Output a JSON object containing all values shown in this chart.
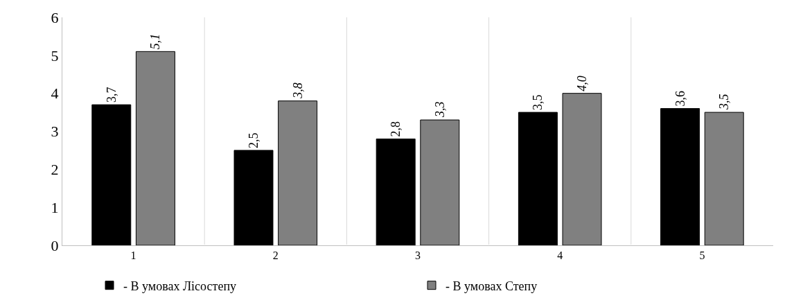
{
  "chart_data": {
    "type": "bar",
    "categories": [
      "1",
      "2",
      "3",
      "4",
      "5"
    ],
    "series": [
      {
        "name": "- В умовах Лісостепу",
        "color": "#000000",
        "values": [
          3.7,
          2.5,
          2.8,
          3.5,
          3.6
        ],
        "value_labels": [
          "3,7",
          "2,5",
          "2,8",
          "3,5",
          "3,6"
        ]
      },
      {
        "name": "- В умовах Степу",
        "color": "#808080",
        "values": [
          5.1,
          3.8,
          3.3,
          4.0,
          3.5
        ],
        "value_labels": [
          "5,1",
          "3,8",
          "3,3",
          "4,0",
          "3,5"
        ]
      }
    ],
    "ylim": [
      0,
      6
    ],
    "yticks": [
      0,
      1,
      2,
      3,
      4,
      5,
      6
    ],
    "grid": "x",
    "legend": "bottom"
  }
}
